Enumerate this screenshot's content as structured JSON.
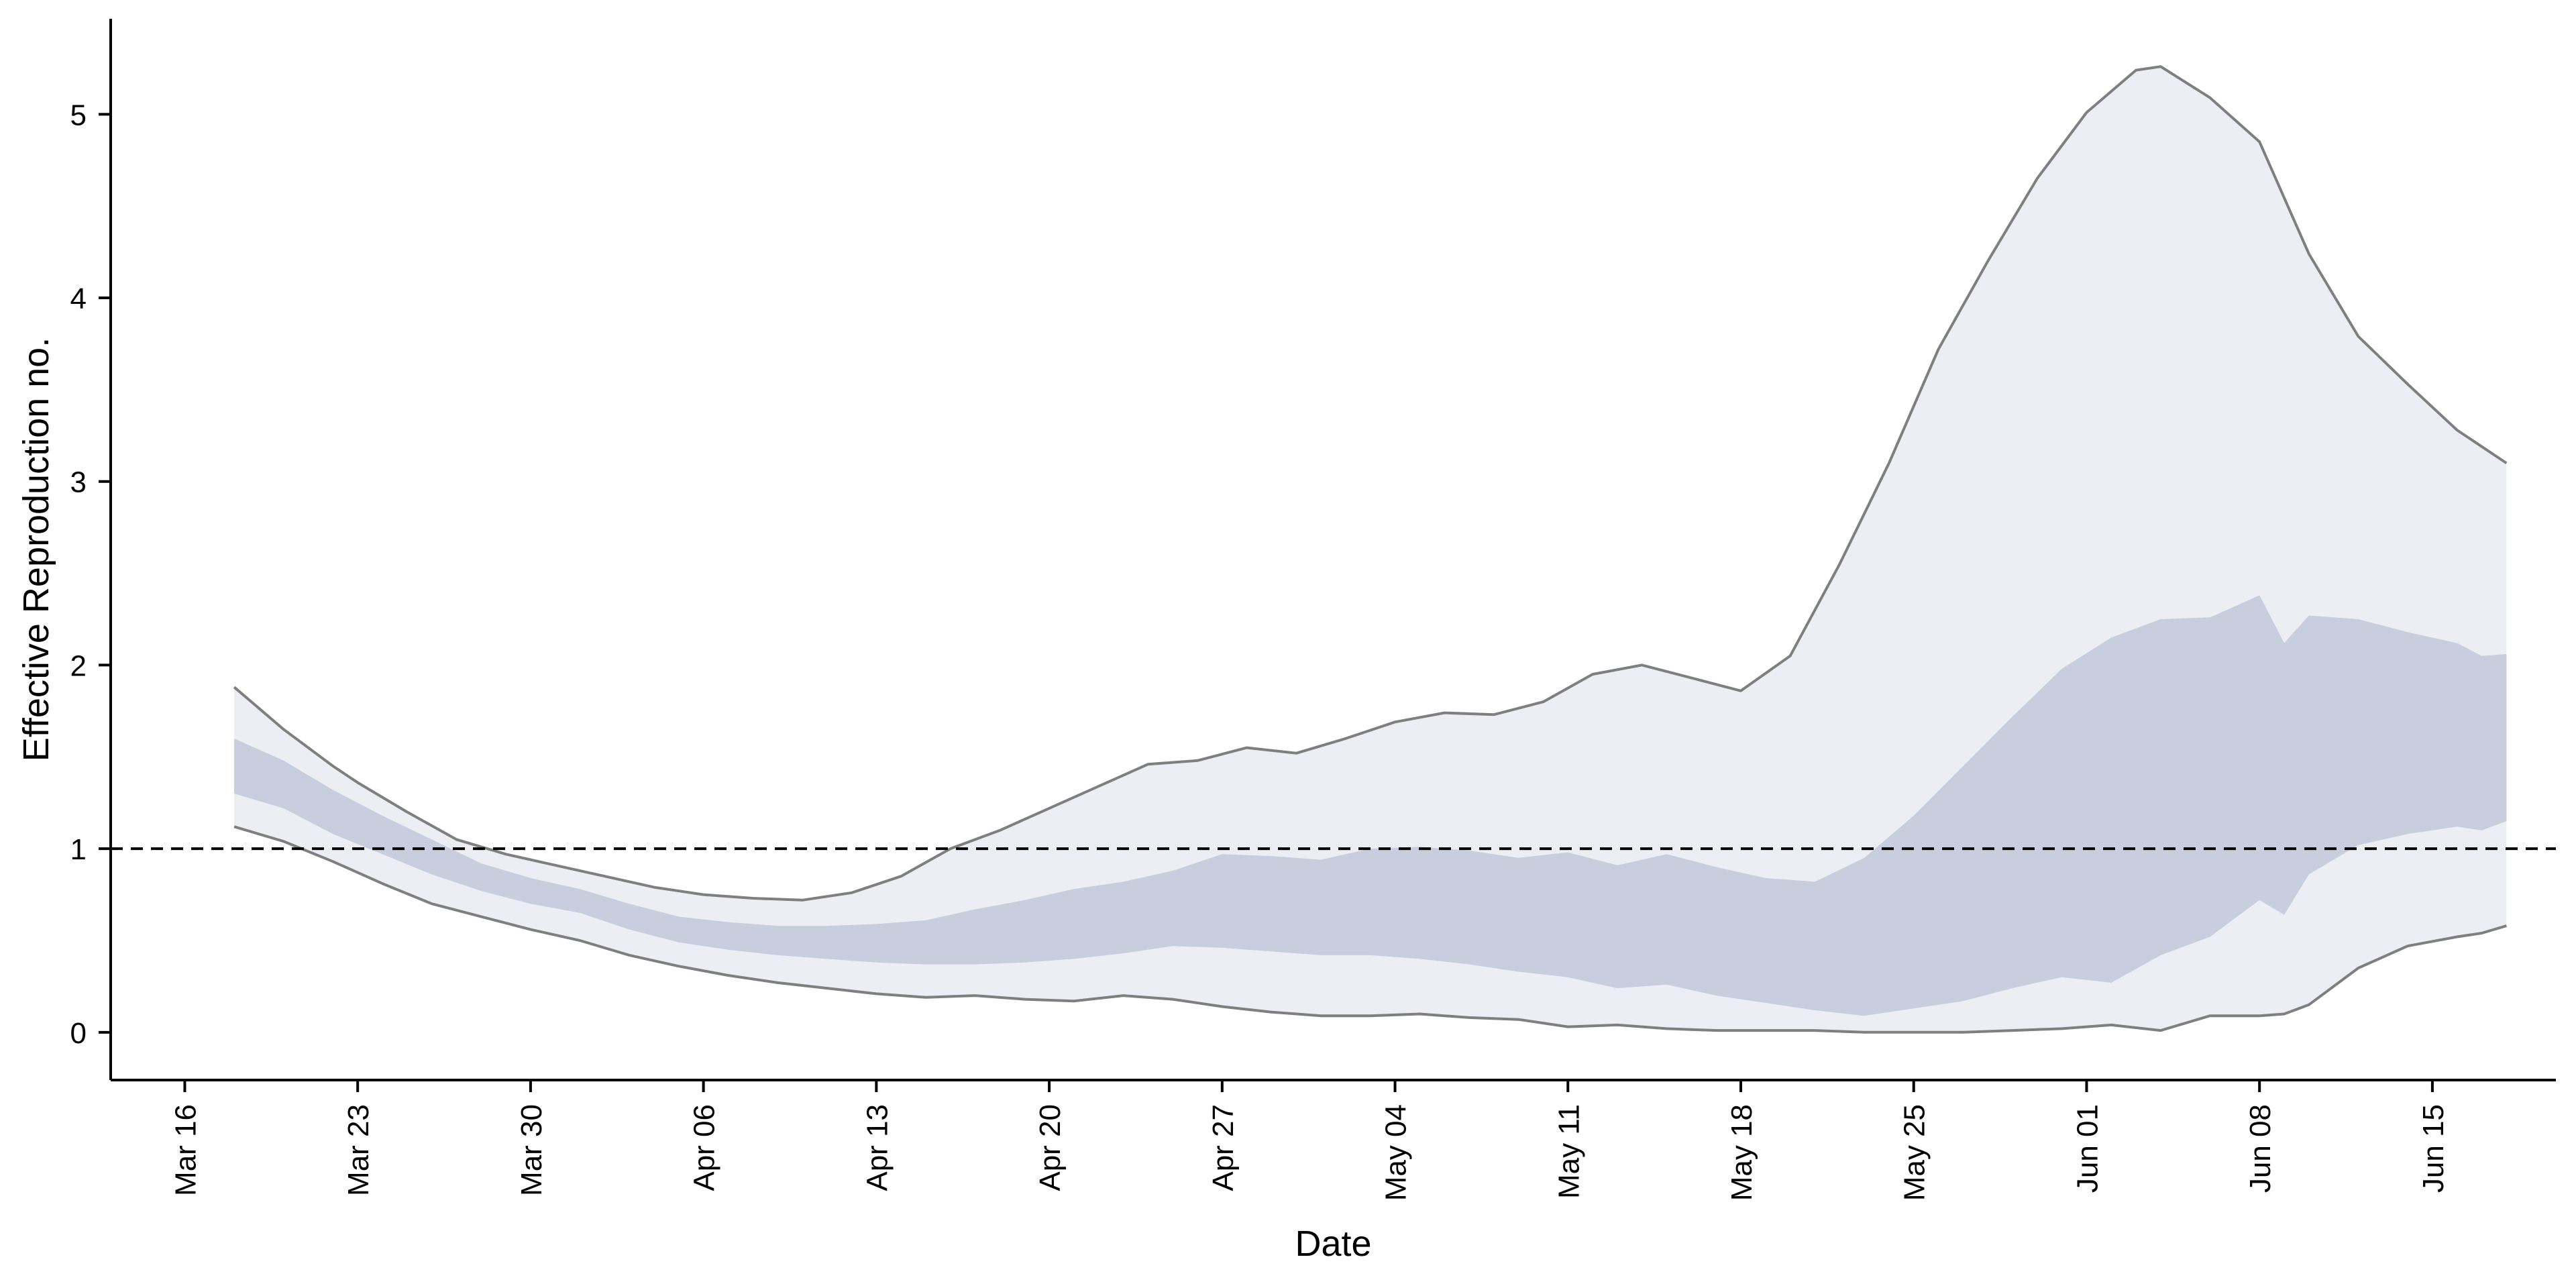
{
  "chart_data": {
    "type": "area",
    "title": "",
    "xlabel": "Date",
    "ylabel": "Effective Reproduction no.",
    "x_ticks": [
      "Mar 16",
      "Mar 23",
      "Mar 30",
      "Apr 06",
      "Apr 13",
      "Apr 20",
      "Apr 27",
      "May 04",
      "May 11",
      "May 18",
      "May 25",
      "Jun 01",
      "Jun 08",
      "Jun 15"
    ],
    "y_ticks": [
      "0",
      "1",
      "2",
      "3",
      "4",
      "5"
    ],
    "xlim": [
      "2020-03-13",
      "2020-06-20"
    ],
    "ylim": [
      -0.26,
      5.52
    ],
    "reference_line": {
      "y": 1,
      "style": "dashed"
    },
    "grid": false,
    "legend": "none",
    "colors": {
      "outer_band": "#eceef3",
      "inner_band": "#c8cedd",
      "bound_line": "#7f7f7f",
      "reference_line": "#000000"
    },
    "series": [
      {
        "role": "outer_band_upper",
        "x": [
          "2020-03-18",
          "2020-03-20",
          "2020-03-22",
          "2020-03-23",
          "2020-03-25",
          "2020-03-27",
          "2020-03-29",
          "2020-03-31",
          "2020-04-02",
          "2020-04-04",
          "2020-04-06",
          "2020-04-08",
          "2020-04-10",
          "2020-04-12",
          "2020-04-14",
          "2020-04-16",
          "2020-04-18",
          "2020-04-20",
          "2020-04-22",
          "2020-04-24",
          "2020-04-26",
          "2020-04-28",
          "2020-04-30",
          "2020-05-02",
          "2020-05-04",
          "2020-05-06",
          "2020-05-08",
          "2020-05-10",
          "2020-05-12",
          "2020-05-14",
          "2020-05-16",
          "2020-05-18",
          "2020-05-20",
          "2020-05-22",
          "2020-05-24",
          "2020-05-26",
          "2020-05-28",
          "2020-05-30",
          "2020-06-01",
          "2020-06-03",
          "2020-06-04",
          "2020-06-06",
          "2020-06-08",
          "2020-06-10",
          "2020-06-12",
          "2020-06-14",
          "2020-06-16",
          "2020-06-18"
        ],
        "values": [
          1.88,
          1.65,
          1.45,
          1.36,
          1.2,
          1.05,
          0.97,
          0.91,
          0.85,
          0.79,
          0.75,
          0.73,
          0.72,
          0.76,
          0.85,
          1.0,
          1.1,
          1.22,
          1.34,
          1.46,
          1.48,
          1.55,
          1.52,
          1.6,
          1.69,
          1.74,
          1.73,
          1.8,
          1.95,
          2.0,
          1.93,
          1.86,
          2.05,
          2.55,
          3.1,
          3.72,
          4.2,
          4.65,
          5.01,
          5.24,
          5.26,
          5.09,
          4.85,
          4.24,
          3.79,
          3.53,
          3.28,
          3.1
        ]
      },
      {
        "role": "inner_band_upper",
        "x": [
          "2020-03-18",
          "2020-03-20",
          "2020-03-22",
          "2020-03-24",
          "2020-03-26",
          "2020-03-28",
          "2020-03-30",
          "2020-04-01",
          "2020-04-03",
          "2020-04-05",
          "2020-04-07",
          "2020-04-09",
          "2020-04-11",
          "2020-04-13",
          "2020-04-15",
          "2020-04-17",
          "2020-04-19",
          "2020-04-21",
          "2020-04-23",
          "2020-04-25",
          "2020-04-27",
          "2020-04-29",
          "2020-05-01",
          "2020-05-03",
          "2020-05-05",
          "2020-05-07",
          "2020-05-09",
          "2020-05-11",
          "2020-05-13",
          "2020-05-15",
          "2020-05-17",
          "2020-05-19",
          "2020-05-21",
          "2020-05-23",
          "2020-05-25",
          "2020-05-27",
          "2020-05-29",
          "2020-05-31",
          "2020-06-02",
          "2020-06-04",
          "2020-06-06",
          "2020-06-08",
          "2020-06-09",
          "2020-06-10",
          "2020-06-12",
          "2020-06-14",
          "2020-06-16",
          "2020-06-17",
          "2020-06-18"
        ],
        "values": [
          1.6,
          1.48,
          1.32,
          1.18,
          1.05,
          0.92,
          0.84,
          0.78,
          0.7,
          0.63,
          0.6,
          0.58,
          0.58,
          0.59,
          0.61,
          0.67,
          0.72,
          0.78,
          0.82,
          0.88,
          0.97,
          0.96,
          0.94,
          1.0,
          1.01,
          0.99,
          0.95,
          0.98,
          0.91,
          0.97,
          0.9,
          0.84,
          0.82,
          0.95,
          1.18,
          1.45,
          1.72,
          1.98,
          2.15,
          2.25,
          2.26,
          2.38,
          2.12,
          2.27,
          2.25,
          2.18,
          2.12,
          2.05,
          2.06
        ]
      },
      {
        "role": "inner_band_lower",
        "x": [
          "2020-03-18",
          "2020-03-20",
          "2020-03-22",
          "2020-03-24",
          "2020-03-26",
          "2020-03-28",
          "2020-03-30",
          "2020-04-01",
          "2020-04-03",
          "2020-04-05",
          "2020-04-07",
          "2020-04-09",
          "2020-04-11",
          "2020-04-13",
          "2020-04-15",
          "2020-04-17",
          "2020-04-19",
          "2020-04-21",
          "2020-04-23",
          "2020-04-25",
          "2020-04-27",
          "2020-04-29",
          "2020-05-01",
          "2020-05-03",
          "2020-05-05",
          "2020-05-07",
          "2020-05-09",
          "2020-05-11",
          "2020-05-13",
          "2020-05-15",
          "2020-05-17",
          "2020-05-19",
          "2020-05-21",
          "2020-05-23",
          "2020-05-25",
          "2020-05-27",
          "2020-05-29",
          "2020-05-31",
          "2020-06-02",
          "2020-06-04",
          "2020-06-06",
          "2020-06-08",
          "2020-06-09",
          "2020-06-10",
          "2020-06-12",
          "2020-06-14",
          "2020-06-16",
          "2020-06-17",
          "2020-06-18"
        ],
        "values": [
          1.3,
          1.22,
          1.08,
          0.97,
          0.86,
          0.77,
          0.7,
          0.65,
          0.56,
          0.49,
          0.45,
          0.42,
          0.4,
          0.38,
          0.37,
          0.37,
          0.38,
          0.4,
          0.43,
          0.47,
          0.46,
          0.44,
          0.42,
          0.42,
          0.4,
          0.37,
          0.33,
          0.3,
          0.24,
          0.26,
          0.2,
          0.16,
          0.12,
          0.09,
          0.13,
          0.17,
          0.24,
          0.3,
          0.27,
          0.42,
          0.52,
          0.72,
          0.64,
          0.86,
          1.02,
          1.08,
          1.12,
          1.1,
          1.15
        ]
      },
      {
        "role": "outer_band_lower",
        "x": [
          "2020-03-18",
          "2020-03-20",
          "2020-03-22",
          "2020-03-24",
          "2020-03-26",
          "2020-03-28",
          "2020-03-30",
          "2020-04-01",
          "2020-04-03",
          "2020-04-05",
          "2020-04-07",
          "2020-04-09",
          "2020-04-11",
          "2020-04-13",
          "2020-04-15",
          "2020-04-17",
          "2020-04-19",
          "2020-04-21",
          "2020-04-23",
          "2020-04-25",
          "2020-04-27",
          "2020-04-29",
          "2020-05-01",
          "2020-05-03",
          "2020-05-05",
          "2020-05-07",
          "2020-05-09",
          "2020-05-11",
          "2020-05-13",
          "2020-05-15",
          "2020-05-17",
          "2020-05-19",
          "2020-05-21",
          "2020-05-23",
          "2020-05-25",
          "2020-05-27",
          "2020-05-29",
          "2020-05-31",
          "2020-06-02",
          "2020-06-04",
          "2020-06-06",
          "2020-06-08",
          "2020-06-09",
          "2020-06-10",
          "2020-06-12",
          "2020-06-14",
          "2020-06-16",
          "2020-06-17",
          "2020-06-18"
        ],
        "values": [
          1.12,
          1.04,
          0.93,
          0.81,
          0.7,
          0.63,
          0.56,
          0.5,
          0.42,
          0.36,
          0.31,
          0.27,
          0.24,
          0.21,
          0.19,
          0.2,
          0.18,
          0.17,
          0.2,
          0.18,
          0.14,
          0.11,
          0.09,
          0.09,
          0.1,
          0.08,
          0.07,
          0.03,
          0.04,
          0.02,
          0.01,
          0.01,
          0.01,
          0.0,
          0.0,
          0.0,
          0.01,
          0.02,
          0.04,
          0.01,
          0.09,
          0.09,
          0.1,
          0.15,
          0.35,
          0.47,
          0.52,
          0.54,
          0.58
        ]
      }
    ]
  }
}
